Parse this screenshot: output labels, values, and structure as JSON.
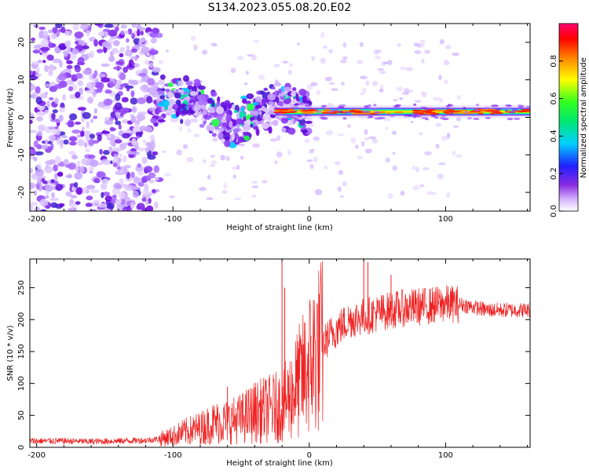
{
  "title": "S134.2023.055.08.20.E02",
  "colors": {
    "snr_line": "#ee2222",
    "axis": "#000000",
    "background": "#ffffff"
  },
  "chart_data": [
    {
      "type": "heatmap",
      "title": "",
      "xlabel": "Height of straight line (km)",
      "ylabel": "Frequency (Hz)",
      "xlim": [
        -205,
        162
      ],
      "ylim": [
        -25,
        25
      ],
      "xticks": [
        -200,
        -100,
        0,
        100
      ],
      "yticks": [
        -20,
        -10,
        0,
        10,
        20
      ],
      "xtick_labels": [
        "-200",
        "-100",
        "0",
        "100"
      ],
      "ytick_labels": [
        "-20",
        "-10",
        "0",
        "10",
        "20"
      ],
      "colorbar": {
        "label": "Normalized spectral amplitude",
        "range": [
          0,
          1
        ],
        "ticks": [
          0.0,
          0.2,
          0.4,
          0.6,
          0.8
        ],
        "tick_labels": [
          "0.0",
          "0.2",
          "0.4",
          "0.6",
          "0.8"
        ],
        "colormap": "rainbow (white-violet-blue-cyan-green-yellow-red-magenta)"
      },
      "features": {
        "noise_region_x": [
          -205,
          -110
        ],
        "scattered_region_x": [
          -110,
          -25
        ],
        "narrowband_line_x": [
          -25,
          162
        ],
        "narrowband_frequency_hz": 1.5,
        "scattered_frequency_trend": [
          {
            "x": -110,
            "f": 5
          },
          {
            "x": -80,
            "f": 4
          },
          {
            "x": -60,
            "f": -2
          },
          {
            "x": -40,
            "f": 1
          },
          {
            "x": -25,
            "f": 3
          },
          {
            "x": 0,
            "f": 1
          }
        ]
      }
    },
    {
      "type": "line",
      "title": "",
      "xlabel": "Height of straight line (km)",
      "ylabel": "SNR (10 * v/v)",
      "xlim": [
        -205,
        162
      ],
      "ylim": [
        0,
        295
      ],
      "xticks": [
        -200,
        -100,
        0,
        100
      ],
      "yticks": [
        0,
        50,
        100,
        150,
        200,
        250
      ],
      "xtick_labels": [
        "-200",
        "-100",
        "0",
        "100"
      ],
      "ytick_labels": [
        "0",
        "50",
        "100",
        "150",
        "200",
        "250"
      ],
      "series": [
        {
          "color": "#ee2222",
          "x": [
            -205,
            -180,
            -160,
            -140,
            -120,
            -110,
            -100,
            -90,
            -80,
            -70,
            -60,
            -50,
            -40,
            -30,
            -20,
            -15,
            -10,
            -5,
            0,
            5,
            10,
            15,
            20,
            30,
            40,
            50,
            60,
            70,
            80,
            90,
            100,
            110,
            120,
            130,
            140,
            150,
            162
          ],
          "y": [
            10,
            10,
            9,
            10,
            11,
            13,
            18,
            25,
            30,
            38,
            40,
            45,
            55,
            60,
            65,
            78,
            95,
            110,
            130,
            150,
            160,
            175,
            185,
            200,
            205,
            210,
            215,
            218,
            220,
            222,
            225,
            224,
            220,
            215,
            215,
            215,
            215
          ],
          "spikes": [
            {
              "x": -60,
              "y": 95
            },
            {
              "x": -20,
              "y": 295
            },
            {
              "x": -18,
              "y": 250
            },
            {
              "x": 40,
              "y": 295
            },
            {
              "x": 43,
              "y": 290
            },
            {
              "x": 60,
              "y": 270
            }
          ]
        }
      ]
    }
  ]
}
